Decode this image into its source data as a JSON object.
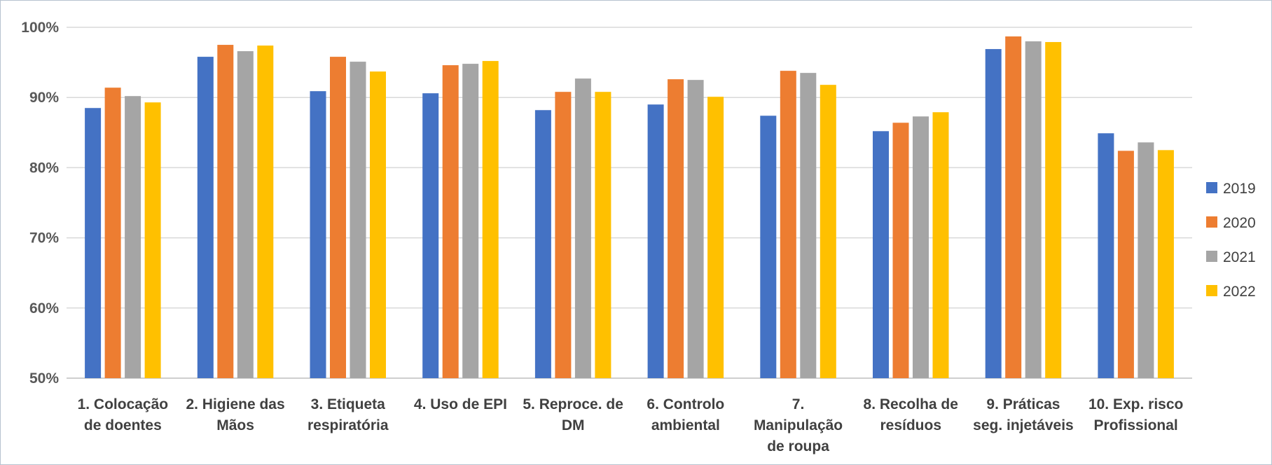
{
  "chart_data": {
    "type": "bar",
    "title": "",
    "xlabel": "",
    "ylabel": "",
    "ylim": [
      50,
      100
    ],
    "yticks": [
      "50%",
      "60%",
      "70%",
      "80%",
      "90%",
      "100%"
    ],
    "grid": true,
    "legend_position": "right",
    "categories": [
      [
        "1. Colocação",
        "de doentes"
      ],
      [
        "2. Higiene das",
        "Mãos"
      ],
      [
        "3. Etiqueta",
        "respiratória"
      ],
      [
        "4. Uso de EPI"
      ],
      [
        "5. Reproce. de",
        "DM"
      ],
      [
        "6. Controlo",
        "ambiental"
      ],
      [
        "7.",
        "Manipulação",
        "de roupa"
      ],
      [
        "8. Recolha de",
        "resíduos"
      ],
      [
        "9. Práticas",
        "seg. injetáveis"
      ],
      [
        "10. Exp. risco",
        "Profissional"
      ]
    ],
    "series": [
      {
        "name": "2019",
        "color": "#4472c4",
        "values": [
          88.5,
          95.8,
          90.9,
          90.6,
          88.2,
          89.0,
          87.4,
          85.2,
          96.9,
          84.9
        ]
      },
      {
        "name": "2020",
        "color": "#ed7d31",
        "values": [
          91.4,
          97.5,
          95.8,
          94.6,
          90.8,
          92.6,
          93.8,
          86.4,
          98.7,
          82.4
        ]
      },
      {
        "name": "2021",
        "color": "#a5a5a5",
        "values": [
          90.2,
          96.6,
          95.1,
          94.8,
          92.7,
          92.5,
          93.5,
          87.3,
          98.0,
          83.6
        ]
      },
      {
        "name": "2022",
        "color": "#ffc000",
        "values": [
          89.3,
          97.4,
          93.7,
          95.2,
          90.8,
          90.1,
          91.8,
          87.9,
          97.9,
          82.5
        ]
      }
    ]
  }
}
